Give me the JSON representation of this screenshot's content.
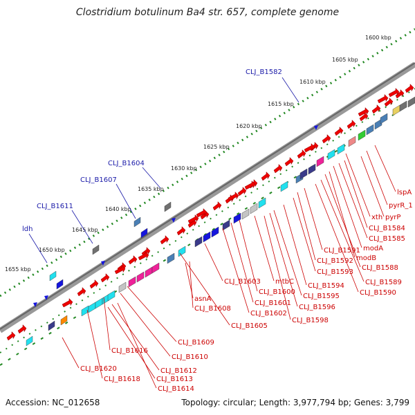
{
  "title": "Clostridium botulinum Ba4 str. 657, complete genome",
  "footer": {
    "accession": "Accession: NC_012658",
    "summary": "Topology: circular; Length: 3,977,794 bp; Genes: 3,799"
  },
  "ticks": [
    "1600 kbp",
    "1605 kbp",
    "1610 kbp",
    "1615 kbp",
    "1620 kbp",
    "1625 kbp",
    "1630 kbp",
    "1635 kbp",
    "1640 kbp",
    "1645 kbp",
    "1650 kbp",
    "1655 kbp"
  ],
  "labels_blue": [
    "CLJ_B1582",
    "CLJ_B1604",
    "CLJ_B1607",
    "CLJ_B1611",
    "ldh"
  ],
  "labels_red": [
    "lspA",
    "pyrR_1",
    "xth",
    "pyrP",
    "CLJ_B1584",
    "CLJ_B1585",
    "modA",
    "CLJ_B1591",
    "modB",
    "CLJ_B1588",
    "CLJ_B1592",
    "CLJ_B1593",
    "CLJ_B1589",
    "CLJ_B1594",
    "CLJ_B1590",
    "CLJ_B1603",
    "mtbC",
    "CLJ_B1600",
    "CLJ_B1595",
    "CLJ_B1601",
    "CLJ_B1596",
    "CLJ_B1602",
    "CLJ_B1598",
    "asnA",
    "CLJ_B1608",
    "CLJ_B1605",
    "CLJ_B1609",
    "CLJ_B1610",
    "CLJ_B1616",
    "CLJ_B1612",
    "CLJ_B1613",
    "CLJ_B1620",
    "CLJ_B1618",
    "CLJ_B1614"
  ],
  "colors": {
    "gene_forward": "#ee0000",
    "gene_cyan": "#22e0ee",
    "gene_navy": "#3a3a8a",
    "gene_blue": "#1515dd",
    "gene_magenta": "#ee2299",
    "gene_steel": "#4a7fb5",
    "gene_grey": "#c4c4c4",
    "gene_darkgrey": "#707070",
    "gene_green": "#33cc33",
    "gene_yellow": "#e8d060",
    "gene_pink": "#ee8888",
    "gene_orange": "#ff8800",
    "backbone": "#888888",
    "gc_ticks": "#228822",
    "label_red": "#cc0000",
    "label_blue": "#1a1aa8"
  }
}
